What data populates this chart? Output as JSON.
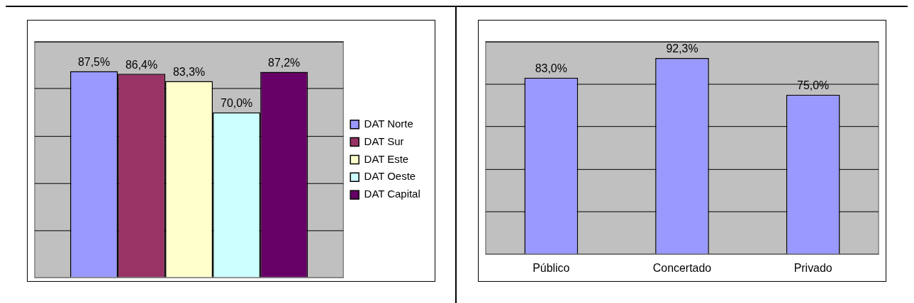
{
  "chart_data": [
    {
      "type": "bar",
      "categories": [
        null
      ],
      "series": [
        {
          "name": "DAT Norte",
          "color": "#9999ff",
          "values": [
            87.5
          ],
          "value_labels": [
            "87,5%"
          ]
        },
        {
          "name": "DAT Sur",
          "color": "#993366",
          "values": [
            86.4
          ],
          "value_labels": [
            "86,4%"
          ]
        },
        {
          "name": "DAT Este",
          "color": "#ffffcc",
          "values": [
            83.3
          ],
          "value_labels": [
            "83,3%"
          ]
        },
        {
          "name": "DAT Oeste",
          "color": "#ccffff",
          "values": [
            70.0
          ],
          "value_labels": [
            "70,0%"
          ]
        },
        {
          "name": "DAT Capital",
          "color": "#660066",
          "values": [
            87.2
          ],
          "value_labels": [
            "87,2%"
          ]
        }
      ],
      "ylim": [
        0,
        100
      ],
      "yticks": [
        {
          "value": 0,
          "label": null
        },
        {
          "value": 20,
          "label": null
        },
        {
          "value": 40,
          "label": null
        },
        {
          "value": 60,
          "label": null
        },
        {
          "value": 80,
          "label": null
        },
        {
          "value": 100,
          "label": null
        }
      ],
      "grid": "y",
      "legend": "right",
      "tick_labels": false
    },
    {
      "type": "bar",
      "categories": [
        "Público",
        "Concertado",
        "Privado"
      ],
      "values": [
        83.0,
        92.3,
        75.0
      ],
      "value_labels": [
        "83,0%",
        "92,3%",
        "75,0%"
      ],
      "color": "#9999ff",
      "ylim": [
        0,
        100
      ],
      "yticks": [
        {
          "value": 0,
          "label": null
        },
        {
          "value": 20,
          "label": null
        },
        {
          "value": 40,
          "label": null
        },
        {
          "value": 60,
          "label": null
        },
        {
          "value": 80,
          "label": null
        },
        {
          "value": 100,
          "label": null
        }
      ],
      "grid": "y",
      "tick_labels": "x"
    }
  ]
}
